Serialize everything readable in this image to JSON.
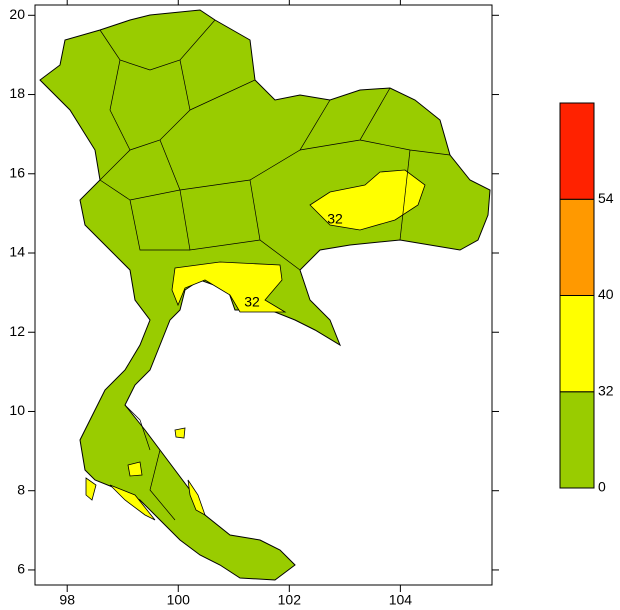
{
  "map": {
    "xlim": [
      97.42,
      105.65
    ],
    "ylim": [
      5.62,
      20.26
    ],
    "xticks": [
      98,
      100,
      102,
      104
    ],
    "yticks": [
      6,
      8,
      10,
      12,
      14,
      16,
      18,
      20
    ],
    "annotations": [
      "32",
      "32"
    ],
    "colorbar": {
      "colors": [
        "#99cc00",
        "#ffff00",
        "#ff9900",
        "#ff2200"
      ],
      "labels": [
        0,
        32,
        40,
        54
      ]
    }
  }
}
